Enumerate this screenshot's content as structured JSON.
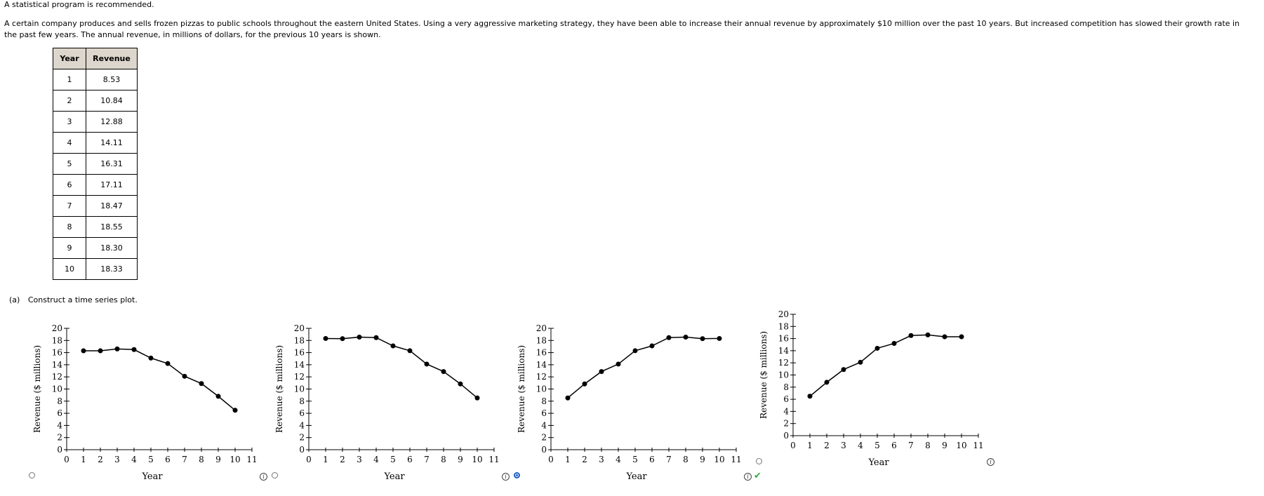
{
  "note": "A statistical program is recommended.",
  "intro": {
    "line1": "A certain company produces and sells frozen pizzas to public schools throughout the eastern United States. Using a very aggressive marketing strategy, they have been able to increase their annual revenue by approximately $10 million over the past 10 years. But increased competition has slowed their growth rate in",
    "line2": "the past few years. The annual revenue, in millions of dollars, for the previous 10 years is shown."
  },
  "table": {
    "headers": [
      "Year",
      "Revenue"
    ],
    "rows": [
      [
        "1",
        "8.53"
      ],
      [
        "2",
        "10.84"
      ],
      [
        "3",
        "12.88"
      ],
      [
        "4",
        "14.11"
      ],
      [
        "5",
        "16.31"
      ],
      [
        "6",
        "17.11"
      ],
      [
        "7",
        "18.47"
      ],
      [
        "8",
        "18.55"
      ],
      [
        "9",
        "18.30"
      ],
      [
        "10",
        "18.33"
      ]
    ]
  },
  "part_a": {
    "label": "(a)",
    "prompt": "Construct a time series plot."
  },
  "option_state": {
    "selected_index": 2,
    "correct_index": 2
  },
  "chart_data": [
    {
      "type": "line",
      "xlabel": "Year",
      "ylabel": "Revenue ($ millions)",
      "xlim": [
        0,
        11
      ],
      "ylim": [
        0,
        20
      ],
      "xticks": [
        "0",
        "1",
        "2",
        "3",
        "4",
        "5",
        "6",
        "7",
        "8",
        "9",
        "10",
        "11"
      ],
      "yticks": [
        "0",
        "2",
        "4",
        "6",
        "8",
        "10",
        "12",
        "14",
        "16",
        "18",
        "20"
      ],
      "x": [
        1,
        2,
        3,
        4,
        5,
        6,
        7,
        8,
        9,
        10
      ],
      "values": [
        16.3,
        16.3,
        16.6,
        16.5,
        15.1,
        14.2,
        12.1,
        10.9,
        8.8,
        6.5
      ]
    },
    {
      "type": "line",
      "xlabel": "Year",
      "ylabel": "Revenue ($ millions)",
      "xlim": [
        0,
        11
      ],
      "ylim": [
        0,
        20
      ],
      "xticks": [
        "0",
        "1",
        "2",
        "3",
        "4",
        "5",
        "6",
        "7",
        "8",
        "9",
        "10",
        "11"
      ],
      "yticks": [
        "0",
        "2",
        "4",
        "6",
        "8",
        "10",
        "12",
        "14",
        "16",
        "18",
        "20"
      ],
      "x": [
        1,
        2,
        3,
        4,
        5,
        6,
        7,
        8,
        9,
        10
      ],
      "values": [
        18.33,
        18.3,
        18.55,
        18.47,
        17.11,
        16.31,
        14.11,
        12.88,
        10.84,
        8.53
      ]
    },
    {
      "type": "line",
      "xlabel": "Year",
      "ylabel": "Revenue ($ millions)",
      "xlim": [
        0,
        11
      ],
      "ylim": [
        0,
        20
      ],
      "xticks": [
        "0",
        "1",
        "2",
        "3",
        "4",
        "5",
        "6",
        "7",
        "8",
        "9",
        "10",
        "11"
      ],
      "yticks": [
        "0",
        "2",
        "4",
        "6",
        "8",
        "10",
        "12",
        "14",
        "16",
        "18",
        "20"
      ],
      "x": [
        1,
        2,
        3,
        4,
        5,
        6,
        7,
        8,
        9,
        10
      ],
      "values": [
        8.53,
        10.84,
        12.88,
        14.11,
        16.31,
        17.11,
        18.47,
        18.55,
        18.3,
        18.33
      ]
    },
    {
      "type": "line",
      "xlabel": "Year",
      "ylabel": "Revenue ($ millions)",
      "xlim": [
        0,
        11
      ],
      "ylim": [
        0,
        20
      ],
      "xticks": [
        "0",
        "1",
        "2",
        "3",
        "4",
        "5",
        "6",
        "7",
        "8",
        "9",
        "10",
        "11"
      ],
      "yticks": [
        "0",
        "2",
        "4",
        "6",
        "8",
        "10",
        "12",
        "14",
        "16",
        "18",
        "20"
      ],
      "x": [
        1,
        2,
        3,
        4,
        5,
        6,
        7,
        8,
        9,
        10
      ],
      "values": [
        6.5,
        8.8,
        10.9,
        12.1,
        14.4,
        15.2,
        16.5,
        16.6,
        16.3,
        16.3
      ]
    }
  ]
}
